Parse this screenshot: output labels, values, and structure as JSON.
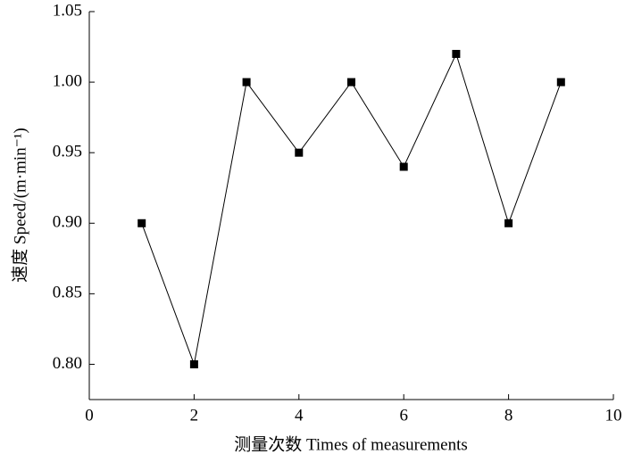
{
  "chart_data": {
    "type": "line",
    "x_label": "测量次数 Times of measurements",
    "y_label": "速度 Speed/(m·min⁻¹)",
    "x": [
      1,
      2,
      3,
      4,
      5,
      6,
      7,
      8,
      9
    ],
    "values": [
      0.9,
      0.8,
      1.0,
      0.95,
      1.0,
      0.94,
      1.02,
      0.9,
      1.0
    ],
    "color": "#000000",
    "xlim": [
      0,
      10
    ],
    "xticks": [
      0,
      2,
      4,
      6,
      8,
      10
    ],
    "ylim": [
      0.775,
      1.05
    ],
    "yticks": [
      {
        "value": 0.8,
        "label": "0.80"
      },
      {
        "value": 0.85,
        "label": "0.85"
      },
      {
        "value": 0.9,
        "label": "0.90"
      },
      {
        "value": 0.95,
        "label": "0.95"
      },
      {
        "value": 1.0,
        "label": "1.00"
      },
      {
        "value": 1.05,
        "label": "1.05"
      }
    ],
    "grid": false
  }
}
